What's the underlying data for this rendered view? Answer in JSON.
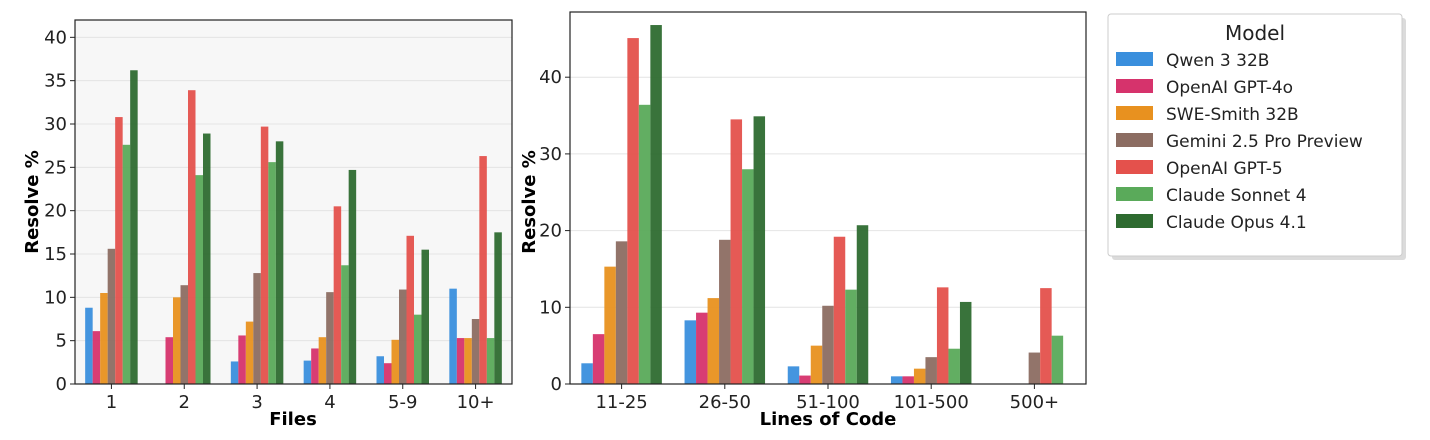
{
  "series_colors": [
    "#3a8fdd",
    "#d6336c",
    "#e8911f",
    "#8c6d62",
    "#e4514c",
    "#5aaa5a",
    "#2e6b30"
  ],
  "legend": {
    "title": "Model",
    "items": [
      "Qwen 3 32B",
      "OpenAI GPT-4o",
      "SWE-Smith 32B",
      "Gemini 2.5 Pro Preview",
      "OpenAI GPT-5",
      "Claude Sonnet 4",
      "Claude Opus 4.1"
    ]
  },
  "chart_data": [
    {
      "type": "bar",
      "title": "",
      "xlabel": "Files",
      "ylabel": "Resolve %",
      "ylim": [
        0,
        42
      ],
      "yticks": [
        0,
        5,
        10,
        15,
        20,
        25,
        30,
        35,
        40
      ],
      "grid": true,
      "categories": [
        "1",
        "2",
        "3",
        "4",
        "5-9",
        "10+"
      ],
      "series": [
        {
          "name": "Qwen 3 32B",
          "values": [
            8.8,
            0,
            2.6,
            2.7,
            3.2,
            11.0
          ]
        },
        {
          "name": "OpenAI GPT-4o",
          "values": [
            6.1,
            5.4,
            5.6,
            4.1,
            2.4,
            5.3
          ]
        },
        {
          "name": "SWE-Smith 32B",
          "values": [
            10.5,
            10.0,
            7.2,
            5.4,
            5.1,
            5.3
          ]
        },
        {
          "name": "Gemini 2.5 Pro Preview",
          "values": [
            15.6,
            11.4,
            12.8,
            10.6,
            10.9,
            7.5
          ]
        },
        {
          "name": "OpenAI GPT-5",
          "values": [
            30.8,
            33.9,
            29.7,
            20.5,
            17.1,
            26.3
          ]
        },
        {
          "name": "Claude Sonnet 4",
          "values": [
            27.6,
            24.1,
            25.6,
            13.7,
            8.0,
            5.3
          ]
        },
        {
          "name": "Claude Opus 4.1",
          "values": [
            36.2,
            28.9,
            28.0,
            24.7,
            15.5,
            17.5
          ]
        }
      ]
    },
    {
      "type": "bar",
      "title": "",
      "xlabel": "Lines of Code",
      "ylabel": "Resolve %",
      "ylim": [
        0,
        48.5
      ],
      "yticks": [
        0,
        10,
        20,
        30,
        40
      ],
      "grid": true,
      "categories": [
        "11-25",
        "26-50",
        "51-100",
        "101-500",
        "500+"
      ],
      "series": [
        {
          "name": "Qwen 3 32B",
          "values": [
            2.7,
            8.3,
            2.3,
            1.0,
            0
          ]
        },
        {
          "name": "OpenAI GPT-4o",
          "values": [
            6.5,
            9.3,
            1.1,
            1.0,
            0
          ]
        },
        {
          "name": "SWE-Smith 32B",
          "values": [
            15.3,
            11.2,
            5.0,
            2.0,
            0
          ]
        },
        {
          "name": "Gemini 2.5 Pro Preview",
          "values": [
            18.6,
            18.8,
            10.2,
            3.5,
            4.1
          ]
        },
        {
          "name": "OpenAI GPT-5",
          "values": [
            45.1,
            34.5,
            19.2,
            12.6,
            12.5
          ]
        },
        {
          "name": "Claude Sonnet 4",
          "values": [
            36.4,
            28.0,
            12.3,
            4.6,
            6.3
          ]
        },
        {
          "name": "Claude Opus 4.1",
          "values": [
            46.8,
            34.9,
            20.7,
            10.7,
            0
          ]
        }
      ]
    }
  ]
}
